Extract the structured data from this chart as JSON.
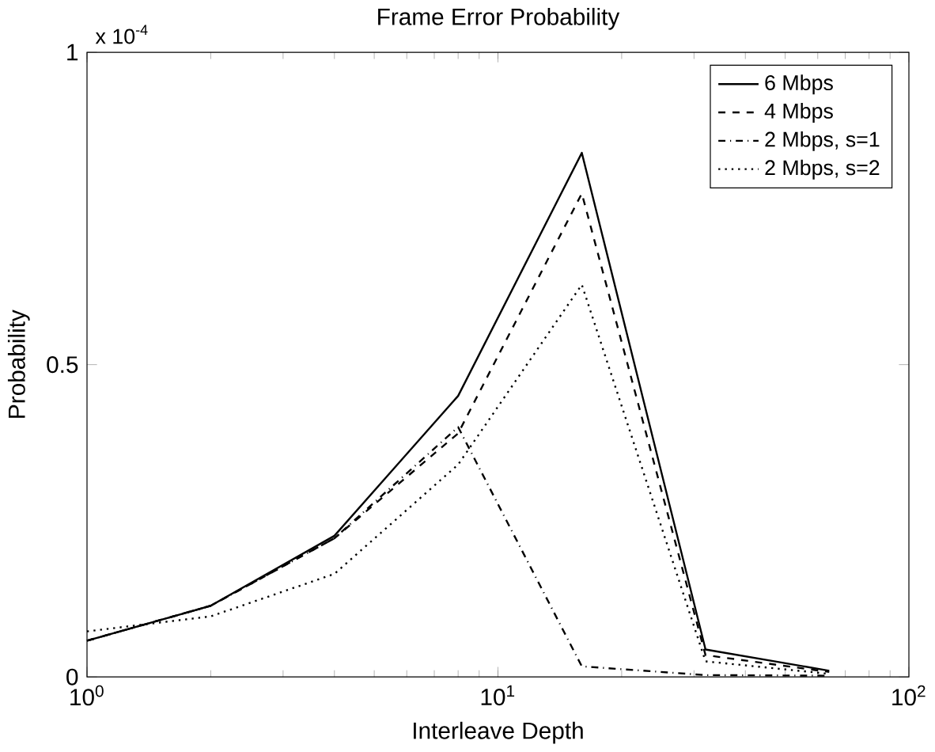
{
  "chart_data": {
    "type": "line",
    "title": "Frame Error Probability",
    "xlabel": "Interleave Depth",
    "ylabel": "Probability",
    "annotations": [
      "x 10$^{-4}$"
    ],
    "x": [
      1,
      2,
      4,
      8,
      16,
      32,
      64
    ],
    "series": [
      {
        "name": "6 Mbps",
        "color": "#000000",
        "line_style": "solid",
        "values": [
          0.058,
          0.114,
          0.226,
          0.45,
          0.839,
          0.044,
          0.01
        ]
      },
      {
        "name": "4 Mbps",
        "color": "#000000",
        "line_style": "dashed",
        "values": [
          0.058,
          0.114,
          0.222,
          0.39,
          0.774,
          0.035,
          0.008
        ]
      },
      {
        "name": "2 Mbps, s=1",
        "color": "#000000",
        "line_style": "dashdot",
        "values": [
          0.058,
          0.114,
          0.222,
          0.4,
          0.017,
          0.003,
          0.002
        ]
      },
      {
        "name": "2 Mbps, s=2",
        "color": "#000000",
        "line_style": "dotted",
        "values": [
          0.073,
          0.097,
          0.165,
          0.34,
          0.628,
          0.025,
          0.005
        ]
      }
    ],
    "log": "x",
    "xlim": [
      1,
      100
    ],
    "ylim": [
      0,
      1
    ],
    "xticks": [
      {
        "value": 1,
        "label": "10$^{0}$"
      },
      {
        "value": 10,
        "label": "10$^{1}$"
      },
      {
        "value": 100,
        "label": "10$^{2}$"
      }
    ],
    "yticks": [
      0,
      0.5,
      1
    ],
    "grid": false,
    "legend": "top right",
    "marker": "none"
  }
}
